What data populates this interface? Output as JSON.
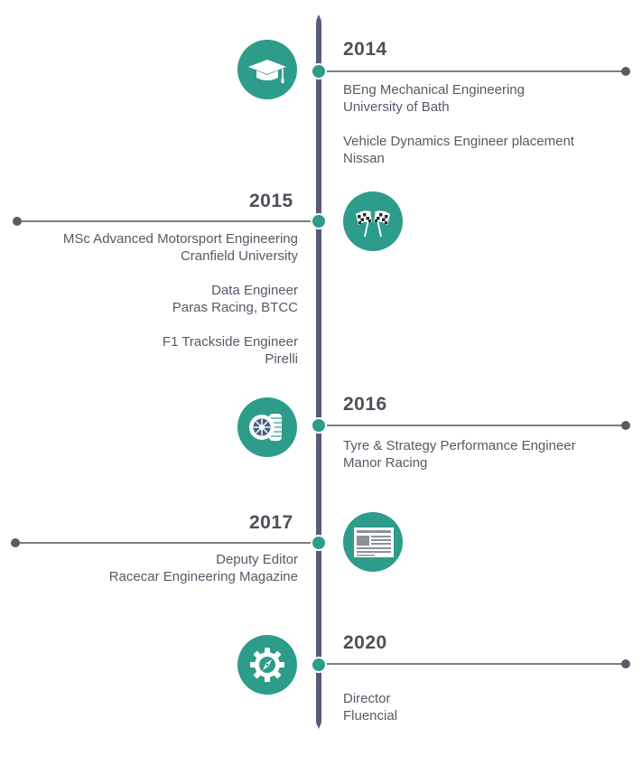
{
  "timeline": [
    {
      "year": "2014",
      "icon": "graduation-cap-icon",
      "entries": [
        {
          "title": "BEng Mechanical Engineering",
          "org": "University of Bath"
        },
        {
          "title": "Vehicle Dynamics Engineer placement",
          "org": "Nissan"
        }
      ]
    },
    {
      "year": "2015",
      "icon": "checkered-flags-icon",
      "entries": [
        {
          "title": "MSc Advanced Motorsport Engineering",
          "org": "Cranfield University"
        },
        {
          "title": "Data Engineer",
          "org": "Paras Racing, BTCC"
        },
        {
          "title": "F1 Trackside Engineer",
          "org": "Pirelli"
        }
      ]
    },
    {
      "year": "2016",
      "icon": "tyre-icon",
      "entries": [
        {
          "title": "Tyre & Strategy Performance Engineer",
          "org": "Manor Racing"
        }
      ]
    },
    {
      "year": "2017",
      "icon": "newspaper-icon",
      "entries": [
        {
          "title": "Deputy Editor",
          "org": "Racecar Engineering Magazine"
        }
      ]
    },
    {
      "year": "2020",
      "icon": "gear-compass-icon",
      "entries": [
        {
          "title": "Director",
          "org": "Fluencial"
        }
      ]
    }
  ],
  "colors": {
    "accent": "#2e9c8a",
    "spine": "#565c78",
    "line": "#7a7d86",
    "text": "#555a66",
    "year": "#4d5058"
  }
}
